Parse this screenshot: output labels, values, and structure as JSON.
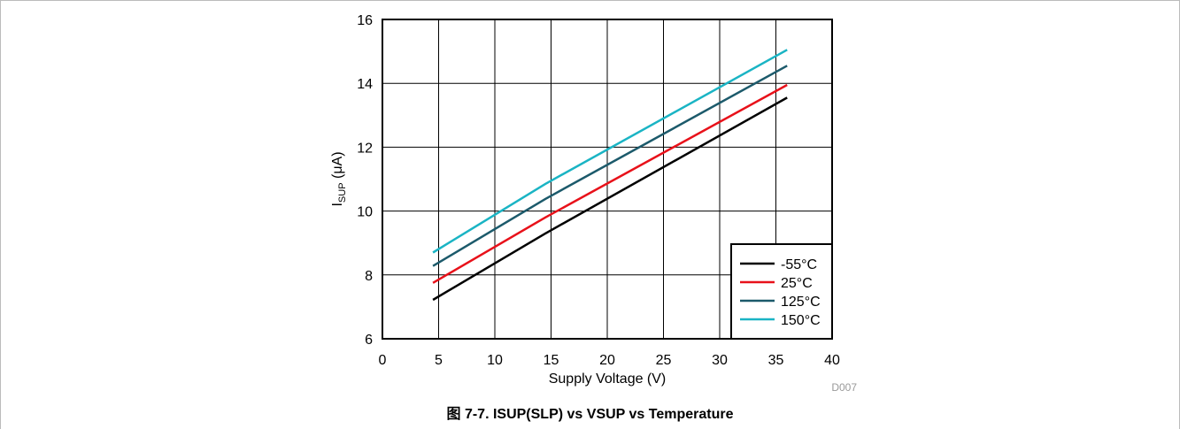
{
  "caption": "图 7-7. ISUP(SLP) vs VSUP vs Temperature",
  "chart_data": {
    "type": "line",
    "xlabel": "Supply Voltage (V)",
    "ylabel_main": "I",
    "ylabel_sub": "SUP",
    "ylabel_unit": " (μA)",
    "xlim": [
      0,
      40
    ],
    "ylim": [
      6,
      16
    ],
    "xticks": [
      "0",
      "5",
      "10",
      "15",
      "20",
      "25",
      "30",
      "35",
      "40"
    ],
    "yticks": [
      "6",
      "8",
      "10",
      "12",
      "14",
      "16"
    ],
    "grid": true,
    "legend_position": "bottom-right",
    "figure_code": "D007",
    "series": [
      {
        "name": "-55°C",
        "color": "#000000",
        "x": [
          4.5,
          14.5,
          36
        ],
        "y": [
          7.22,
          9.3,
          13.55
        ]
      },
      {
        "name": "25°C",
        "color": "#e8111a",
        "x": [
          4.5,
          14.5,
          36
        ],
        "y": [
          7.75,
          9.8,
          13.95
        ]
      },
      {
        "name": "125°C",
        "color": "#1c5a6b",
        "x": [
          4.5,
          14.5,
          36
        ],
        "y": [
          8.28,
          10.38,
          14.55
        ]
      },
      {
        "name": "150°C",
        "color": "#1ab4c4",
        "x": [
          4.5,
          14.5,
          36
        ],
        "y": [
          8.7,
          10.85,
          15.05
        ]
      }
    ]
  }
}
